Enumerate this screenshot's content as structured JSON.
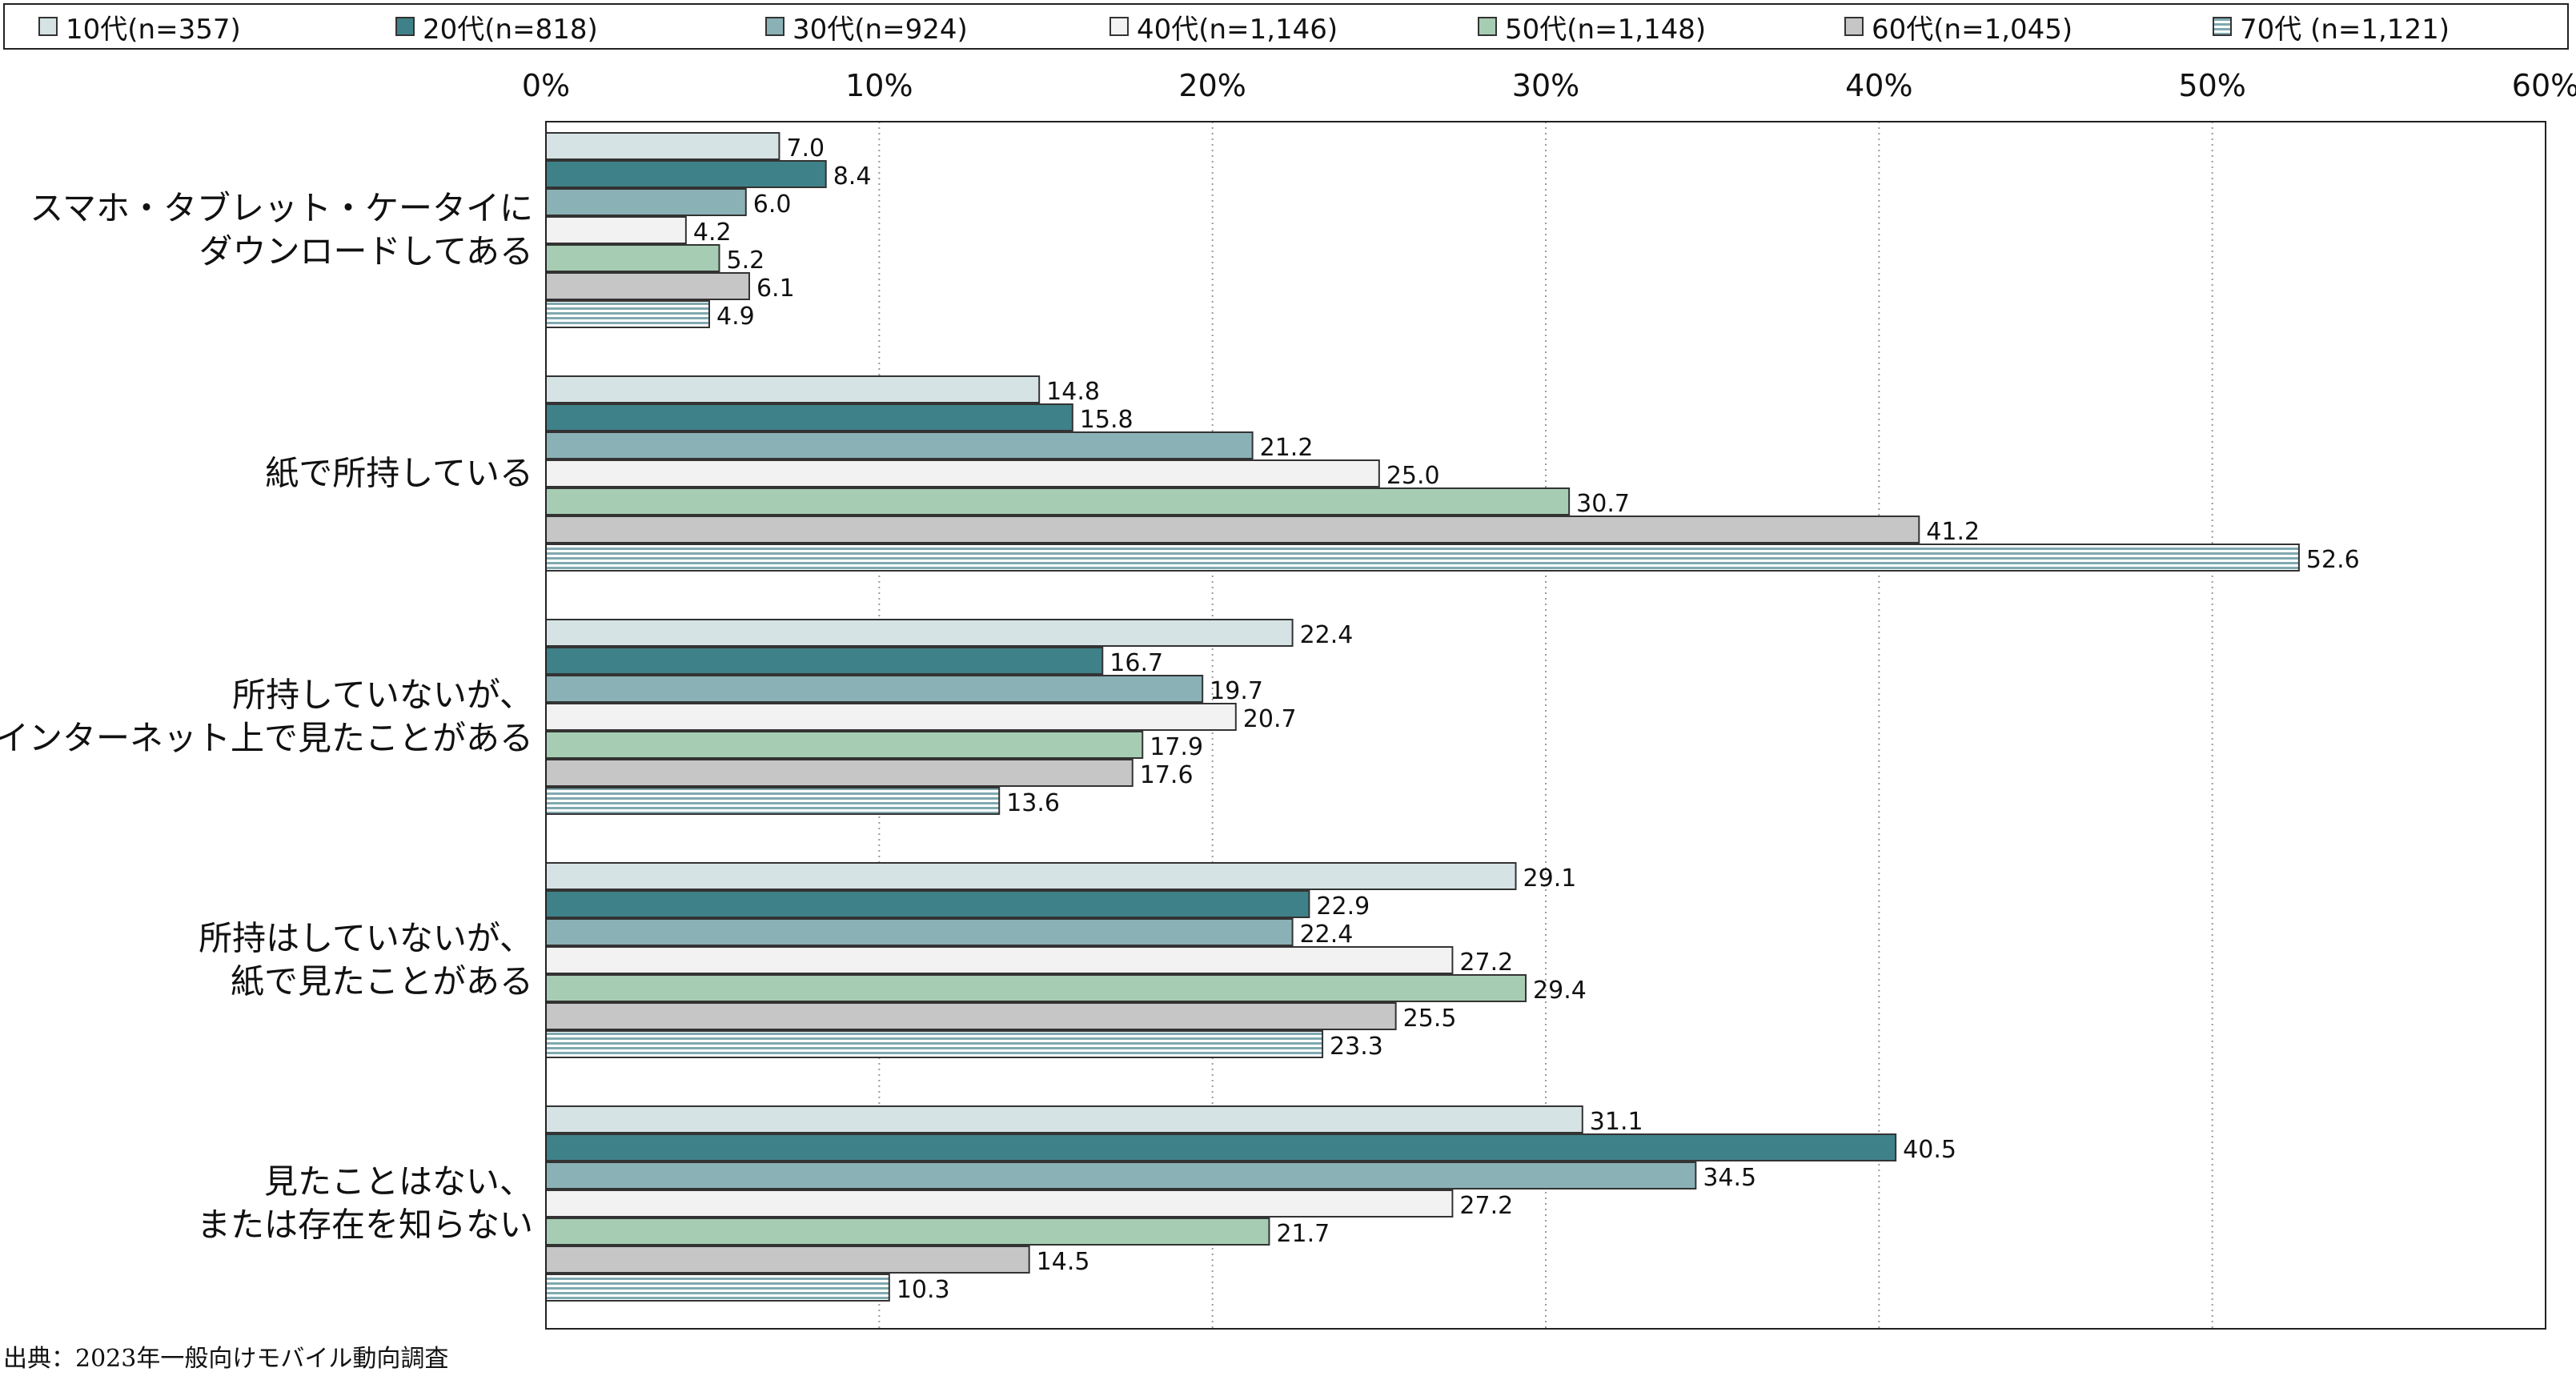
{
  "chart_data": {
    "type": "bar",
    "orientation": "horizontal",
    "categories": [
      [
        "スマホ・タブレット・ケータイに",
        "ダウンロードしてある"
      ],
      [
        "紙で所持している"
      ],
      [
        "所持していないが、",
        "インターネット上で見たことがある"
      ],
      [
        "所持はしていないが、",
        "紙で見たことがある"
      ],
      [
        "見たことはない、",
        "または存在を知らない"
      ]
    ],
    "series": [
      {
        "name": "10代(n=357)",
        "color": "#d5e3e4",
        "pattern": "solid",
        "values": [
          7.0,
          14.8,
          22.4,
          29.1,
          31.1
        ],
        "labels": [
          "7.0",
          "14.8",
          "22.4",
          "29.1",
          "31.1"
        ]
      },
      {
        "name": "20代(n=818)",
        "color": "#3f8188",
        "pattern": "solid",
        "values": [
          8.4,
          15.8,
          16.7,
          22.9,
          40.5
        ],
        "labels": [
          "8.4",
          "15.8",
          "16.7",
          "22.9",
          "40.5"
        ]
      },
      {
        "name": "30代(n=924)",
        "color": "#8ab1b6",
        "pattern": "solid",
        "values": [
          6.0,
          21.2,
          19.7,
          22.4,
          34.5
        ],
        "labels": [
          "6.0",
          "21.2",
          "19.7",
          "22.4",
          "34.5"
        ]
      },
      {
        "name": "40代(n=1,146)",
        "color": "#f2f2f2",
        "pattern": "solid",
        "values": [
          4.2,
          25.0,
          20.7,
          27.2,
          27.2
        ],
        "labels": [
          "4.2",
          "25.0",
          "20.7",
          "27.2",
          "27.2"
        ]
      },
      {
        "name": "50代(n=1,148)",
        "color": "#a6cdb3",
        "pattern": "solid",
        "values": [
          5.2,
          30.7,
          17.9,
          29.4,
          21.7
        ],
        "labels": [
          "5.2",
          "30.7",
          "17.9",
          "29.4",
          "21.7"
        ]
      },
      {
        "name": "60代(n=1,045)",
        "color": "#c6c6c6",
        "pattern": "solid",
        "values": [
          6.1,
          41.2,
          17.6,
          25.5,
          14.5
        ],
        "labels": [
          "6.1",
          "41.2",
          "17.6",
          "25.5",
          "14.5"
        ]
      },
      {
        "name": "70代 (n=1,121)",
        "color": "#9fc2c8",
        "pattern": "horizontal-stripes",
        "values": [
          4.9,
          52.6,
          13.6,
          23.3,
          10.3
        ],
        "labels": [
          "4.9",
          "52.6",
          "13.6",
          "23.3",
          "10.3"
        ]
      }
    ],
    "xlim": [
      0,
      60
    ],
    "xticks": [
      0,
      10,
      20,
      30,
      40,
      50,
      60
    ],
    "xtick_labels": [
      "0%",
      "10%",
      "20%",
      "30%",
      "40%",
      "50%",
      "60%"
    ],
    "grid": "vertical-dotted",
    "legend_position": "top"
  },
  "source": "出典：2023年一般向けモバイル動向調査"
}
